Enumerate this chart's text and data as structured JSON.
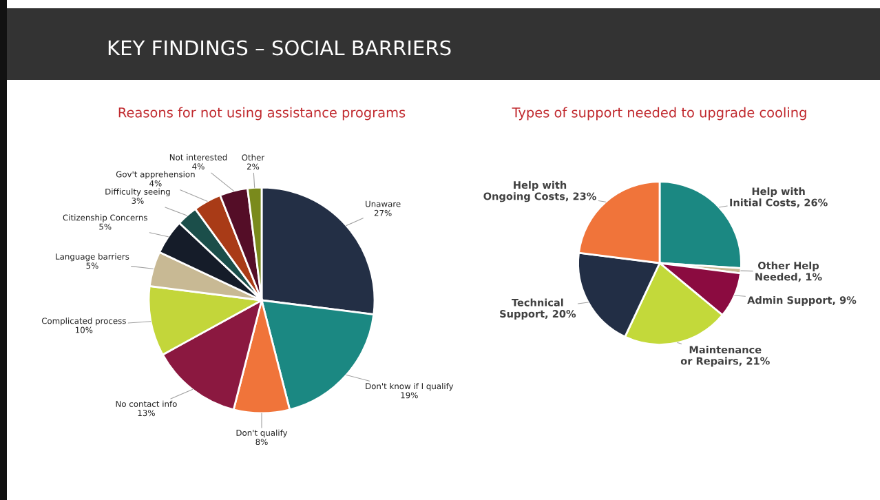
{
  "chart_data": [
    {
      "type": "pie",
      "title": "Reasons for not using assistance programs",
      "annotations": [
        "KEY FINDINGS – SOCIAL BARRIERS"
      ],
      "categories": [
        "Unaware",
        "Don't know if I qualify",
        "Don't qualify",
        "No contact info",
        "Complicated process",
        "Language barriers",
        "Citizenship Concerns",
        "Difficulty seeing",
        "Gov't apprehension",
        "Not interested",
        "Other"
      ],
      "values": [
        27,
        19,
        8,
        13,
        10,
        5,
        5,
        3,
        4,
        4,
        2
      ],
      "value_labels": [
        "27%",
        "19%",
        "8%",
        "13%",
        "10%",
        "5%",
        "5%",
        "3%",
        "4%",
        "4%",
        "2%"
      ],
      "colors": [
        "#232f45",
        "#1b8882",
        "#f0743a",
        "#8b1840",
        "#c3d63a",
        "#c8b994",
        "#151c29",
        "#1b4e4a",
        "#a93b17",
        "#540d27",
        "#7a8a1c"
      ]
    },
    {
      "type": "pie",
      "title": "Types of support needed to upgrade cooling",
      "categories": [
        "Help with\nInitial Costs",
        "Other Help\nNeeded",
        "Admin Support",
        "Maintenance\nor Repairs",
        "Technical\nSupport",
        "Help with\nOngoing Costs"
      ],
      "values": [
        26,
        1,
        9,
        21,
        20,
        23
      ],
      "value_labels": [
        "26%",
        "1%",
        "9%",
        "21%",
        "20%",
        "23%"
      ],
      "colors": [
        "#1b8882",
        "#c8b994",
        "#8b0b40",
        "#c3d93a",
        "#222e45",
        "#f0743a"
      ]
    }
  ]
}
